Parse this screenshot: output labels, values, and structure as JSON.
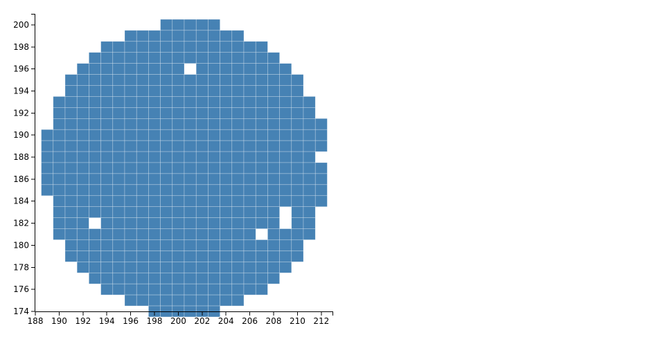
{
  "chart_data": {
    "type": "heatmap",
    "title": "",
    "xlabel": "",
    "ylabel": "",
    "xlim": [
      188,
      213
    ],
    "ylim": [
      174,
      201
    ],
    "cell_width": 1,
    "cell_height": 1,
    "grid": false,
    "legend": "none",
    "colors": {
      "cell": "#4682b4",
      "cell_border": "#ffffff",
      "axis": "#000000"
    },
    "xticks": [
      188,
      190,
      192,
      194,
      196,
      198,
      200,
      202,
      204,
      206,
      208,
      210,
      212
    ],
    "yticks": [
      174,
      176,
      178,
      180,
      182,
      184,
      186,
      188,
      190,
      192,
      194,
      196,
      198,
      200
    ],
    "rows": [
      {
        "y": 200,
        "cells": [
          [
            199,
            203
          ]
        ]
      },
      {
        "y": 199,
        "cells": [
          [
            196,
            205
          ]
        ]
      },
      {
        "y": 198,
        "cells": [
          [
            194,
            207
          ]
        ]
      },
      {
        "y": 197,
        "cells": [
          [
            193,
            208
          ]
        ]
      },
      {
        "y": 196,
        "cells": [
          [
            192,
            200
          ],
          [
            202,
            209
          ]
        ]
      },
      {
        "y": 195,
        "cells": [
          [
            191,
            210
          ]
        ]
      },
      {
        "y": 194,
        "cells": [
          [
            191,
            210
          ]
        ]
      },
      {
        "y": 193,
        "cells": [
          [
            190,
            211
          ]
        ]
      },
      {
        "y": 192,
        "cells": [
          [
            190,
            211
          ]
        ]
      },
      {
        "y": 191,
        "cells": [
          [
            190,
            212
          ]
        ]
      },
      {
        "y": 190,
        "cells": [
          [
            189,
            212
          ]
        ]
      },
      {
        "y": 189,
        "cells": [
          [
            189,
            212
          ]
        ]
      },
      {
        "y": 188,
        "cells": [
          [
            189,
            211
          ]
        ]
      },
      {
        "y": 187,
        "cells": [
          [
            189,
            212
          ]
        ]
      },
      {
        "y": 186,
        "cells": [
          [
            189,
            212
          ]
        ]
      },
      {
        "y": 185,
        "cells": [
          [
            189,
            212
          ]
        ]
      },
      {
        "y": 184,
        "cells": [
          [
            190,
            212
          ]
        ]
      },
      {
        "y": 183,
        "cells": [
          [
            190,
            208
          ],
          [
            210,
            211
          ]
        ]
      },
      {
        "y": 182,
        "cells": [
          [
            190,
            192
          ],
          [
            194,
            208
          ],
          [
            210,
            211
          ]
        ]
      },
      {
        "y": 181,
        "cells": [
          [
            190,
            206
          ],
          [
            208,
            211
          ]
        ]
      },
      {
        "y": 180,
        "cells": [
          [
            191,
            210
          ]
        ]
      },
      {
        "y": 179,
        "cells": [
          [
            191,
            210
          ]
        ]
      },
      {
        "y": 178,
        "cells": [
          [
            192,
            209
          ]
        ]
      },
      {
        "y": 177,
        "cells": [
          [
            193,
            208
          ]
        ]
      },
      {
        "y": 176,
        "cells": [
          [
            194,
            207
          ]
        ]
      },
      {
        "y": 175,
        "cells": [
          [
            196,
            205
          ]
        ]
      },
      {
        "y": 174,
        "cells": [
          [
            198,
            203
          ]
        ]
      }
    ]
  }
}
